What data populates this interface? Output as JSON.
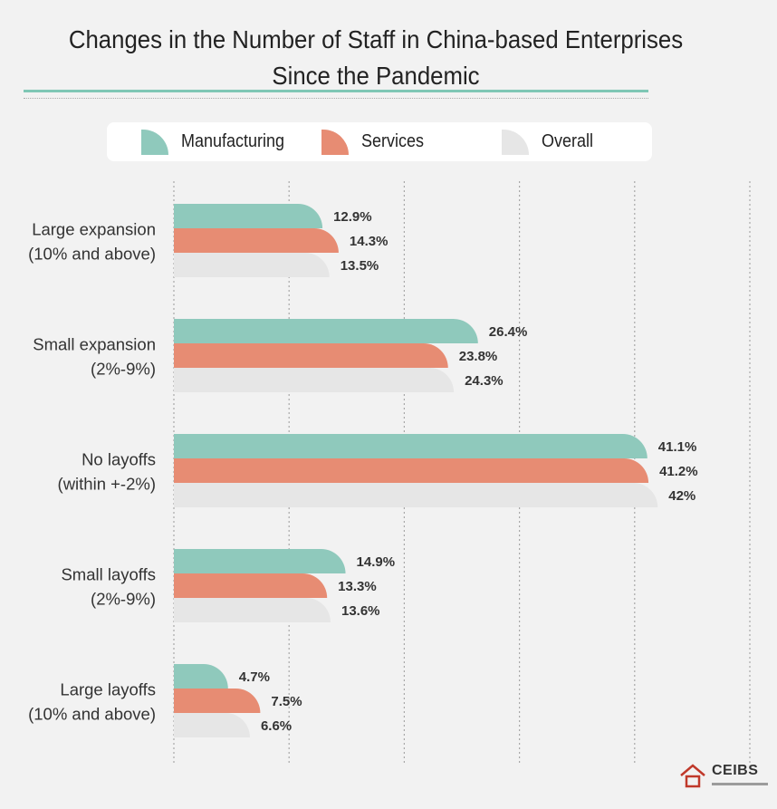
{
  "title_line1": "Changes in the Number of Staff in China-based Enterprises",
  "title_line2": "Since the Pandemic",
  "logo_text": "CEIBS",
  "colors": {
    "Manufacturing": "#8fc9bc",
    "Services": "#e78c73",
    "Overall": "#e6e6e6"
  },
  "chart_data": {
    "type": "bar",
    "orientation": "horizontal",
    "xlim": [
      0,
      50
    ],
    "grid": true,
    "legend_position": "top",
    "categories": [
      [
        "Large expansion",
        "(10% and above)"
      ],
      [
        "Small expansion",
        "(2%-9%)"
      ],
      [
        "No layoffs",
        "(within +-2%)"
      ],
      [
        "Small layoffs",
        "(2%-9%)"
      ],
      [
        "Large layoffs",
        "(10% and above)"
      ]
    ],
    "series": [
      {
        "name": "Manufacturing",
        "values": [
          12.9,
          26.4,
          41.1,
          14.9,
          4.7
        ],
        "labels": [
          "12.9%",
          "26.4%",
          "41.1%",
          "14.9%",
          "4.7%"
        ]
      },
      {
        "name": "Services",
        "values": [
          14.3,
          23.8,
          41.2,
          13.3,
          7.5
        ],
        "labels": [
          "14.3%",
          "23.8%",
          "41.2%",
          "13.3%",
          "7.5%"
        ]
      },
      {
        "name": "Overall",
        "values": [
          13.5,
          24.3,
          42,
          13.6,
          6.6
        ],
        "labels": [
          "13.5%",
          "24.3%",
          "42%",
          "13.6%",
          "6.6%"
        ]
      }
    ]
  }
}
